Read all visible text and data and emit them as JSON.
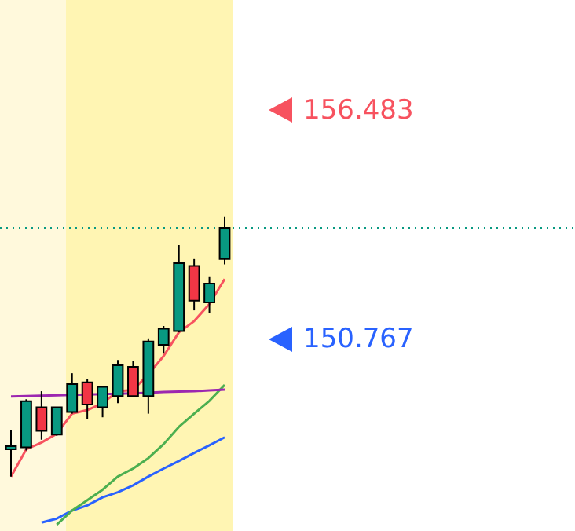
{
  "chart_data": {
    "type": "candlestick",
    "categories": [
      null,
      null,
      null,
      null,
      null,
      null,
      null,
      null,
      null,
      null,
      null,
      null,
      null,
      null,
      null
    ],
    "ohlc": [
      [
        148.01,
        148.48,
        147.33,
        148.09
      ],
      [
        148.06,
        149.26,
        147.98,
        149.21
      ],
      [
        149.06,
        149.46,
        148.25,
        148.47
      ],
      [
        148.38,
        149.06,
        148.35,
        149.06
      ],
      [
        148.94,
        149.91,
        148.9,
        149.64
      ],
      [
        149.68,
        149.77,
        148.77,
        149.13
      ],
      [
        149.06,
        149.57,
        148.81,
        149.57
      ],
      [
        149.34,
        150.24,
        149.16,
        150.11
      ],
      [
        150.07,
        150.21,
        149.33,
        149.34
      ],
      [
        149.34,
        150.78,
        148.9,
        150.7
      ],
      [
        150.62,
        151.09,
        150.4,
        151.02
      ],
      [
        150.96,
        153.11,
        150.93,
        152.66
      ],
      [
        152.59,
        152.76,
        151.48,
        151.72
      ],
      [
        151.68,
        152.31,
        151.41,
        152.15
      ],
      [
        152.76,
        153.82,
        152.63,
        153.54
      ]
    ],
    "colors": [
      "#089981",
      "#089981",
      "#f23645",
      "#089981",
      "#089981",
      "#f23645",
      "#089981",
      "#089981",
      "#f23645",
      "#089981",
      "#089981",
      "#089981",
      "#f23645",
      "#089981",
      "#089981"
    ],
    "series": [
      {
        "type": "line",
        "color": "#f7525f",
        "values": [
          147.33,
          148.01,
          148.18,
          148.4,
          148.9,
          148.99,
          149.16,
          149.46,
          149.49,
          149.88,
          150.34,
          150.93,
          151.21,
          151.64,
          152.26
        ]
      },
      {
        "type": "line",
        "color": "#9c27b0",
        "values": [
          149.33,
          149.34,
          149.35,
          149.36,
          149.37,
          149.38,
          149.39,
          149.4,
          149.41,
          149.42,
          149.44,
          149.45,
          149.46,
          149.48,
          149.5
        ]
      },
      {
        "type": "line",
        "color": "#4caf50",
        "values": [
          null,
          null,
          null,
          146.13,
          146.48,
          146.74,
          147.0,
          147.33,
          147.53,
          147.79,
          148.14,
          148.57,
          148.9,
          149.22,
          149.62
        ]
      },
      {
        "type": "line",
        "color": "#2962ff",
        "values": [
          null,
          null,
          146.18,
          146.28,
          146.48,
          146.61,
          146.81,
          146.94,
          147.11,
          147.33,
          147.53,
          147.72,
          147.92,
          148.11,
          148.31
        ]
      }
    ],
    "ylim": [
      145.97,
      159.23
    ],
    "yticks": [
      156.483,
      150.767
    ],
    "tick_labels": "y",
    "legend": false,
    "ref_lines": [
      {
        "axis": "y",
        "value": 153.54,
        "color": "#089981",
        "line_style": "dotted"
      }
    ]
  }
}
